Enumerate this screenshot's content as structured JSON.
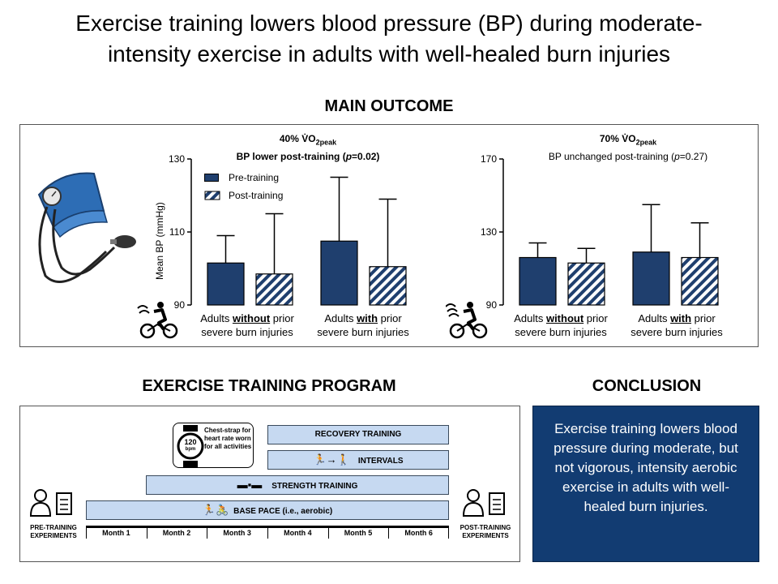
{
  "title": {
    "line1": "Exercise training lowers blood pressure (BP) during moderate-",
    "line2": "intensity exercise in adults with well-healed burn injuries"
  },
  "main_outcome": {
    "heading": "MAIN OUTCOME",
    "left": {
      "intensity": "40% V̇O",
      "sub": "2peak",
      "result_prefix": "BP lower post-training (",
      "result_p": "p",
      "result_suffix": "=0.02)"
    },
    "right": {
      "intensity": "70% V̇O",
      "sub": "2peak",
      "result_prefix": "BP unchanged post-training (",
      "result_p": "p",
      "result_suffix": "=0.27)"
    },
    "ylabel": "Mean BP (mmHg)",
    "legend": {
      "pre": "Pre-training",
      "post": "Post-training"
    },
    "groups": [
      {
        "pre": "Adults ",
        "key": "without",
        "post": " prior",
        "line2": "severe burn injuries"
      },
      {
        "pre": "Adults ",
        "key": "with",
        "post": " prior",
        "line2": "severe burn injuries"
      }
    ]
  },
  "chart_data": [
    {
      "type": "bar",
      "title": "40% V̇O2peak — BP lower post-training (p=0.02)",
      "ylabel": "Mean BP (mmHg)",
      "ylim": [
        90,
        130
      ],
      "yticks": [
        "90",
        "110",
        "130"
      ],
      "categories": [
        "Adults without prior severe burn injuries",
        "Adults with prior severe burn injuries"
      ],
      "series": [
        {
          "name": "Pre-training",
          "values": [
            101.5,
            107.5
          ],
          "error": [
            7.5,
            17.5
          ]
        },
        {
          "name": "Post-training",
          "values": [
            98.5,
            100.5
          ],
          "error": [
            16.5,
            18.5
          ]
        }
      ],
      "legend": "top-left"
    },
    {
      "type": "bar",
      "title": "70% V̇O2peak — BP unchanged post-training (p=0.27)",
      "ylabel": "",
      "ylim": [
        90,
        170
      ],
      "yticks": [
        "90",
        "130",
        "170"
      ],
      "categories": [
        "Adults without prior severe burn injuries",
        "Adults with prior severe burn injuries"
      ],
      "series": [
        {
          "name": "Pre-training",
          "values": [
            116,
            119
          ],
          "error": [
            8,
            26
          ]
        },
        {
          "name": "Post-training",
          "values": [
            113,
            116
          ],
          "error": [
            8,
            19
          ]
        }
      ]
    }
  ],
  "program": {
    "heading": "EXERCISE TRAINING PROGRAM",
    "watch_note": "Chest-strap for heart rate worn for all activities",
    "watch_value": "120",
    "watch_unit": "bpm",
    "phases": [
      "RECOVERY TRAINING",
      "INTERVALS",
      "STRENGTH TRAINING",
      "BASE PACE (i.e., aerobic)"
    ],
    "months": [
      "Month 1",
      "Month 2",
      "Month 3",
      "Month 4",
      "Month 5",
      "Month 6"
    ],
    "pre_label": "PRE-TRAINING EXPERIMENTS",
    "post_label": "POST-TRAINING EXPERIMENTS"
  },
  "conclusion": {
    "heading": "CONCLUSION",
    "text": "Exercise training lowers blood pressure during moderate, but not vigorous, intensity aerobic exercise in adults with well-healed burn injuries."
  },
  "colors": {
    "bar": "#1f3f6e",
    "bar_stripe": "#ffffff",
    "phase": "#c6d9f1",
    "conclusion": "#123c72"
  }
}
